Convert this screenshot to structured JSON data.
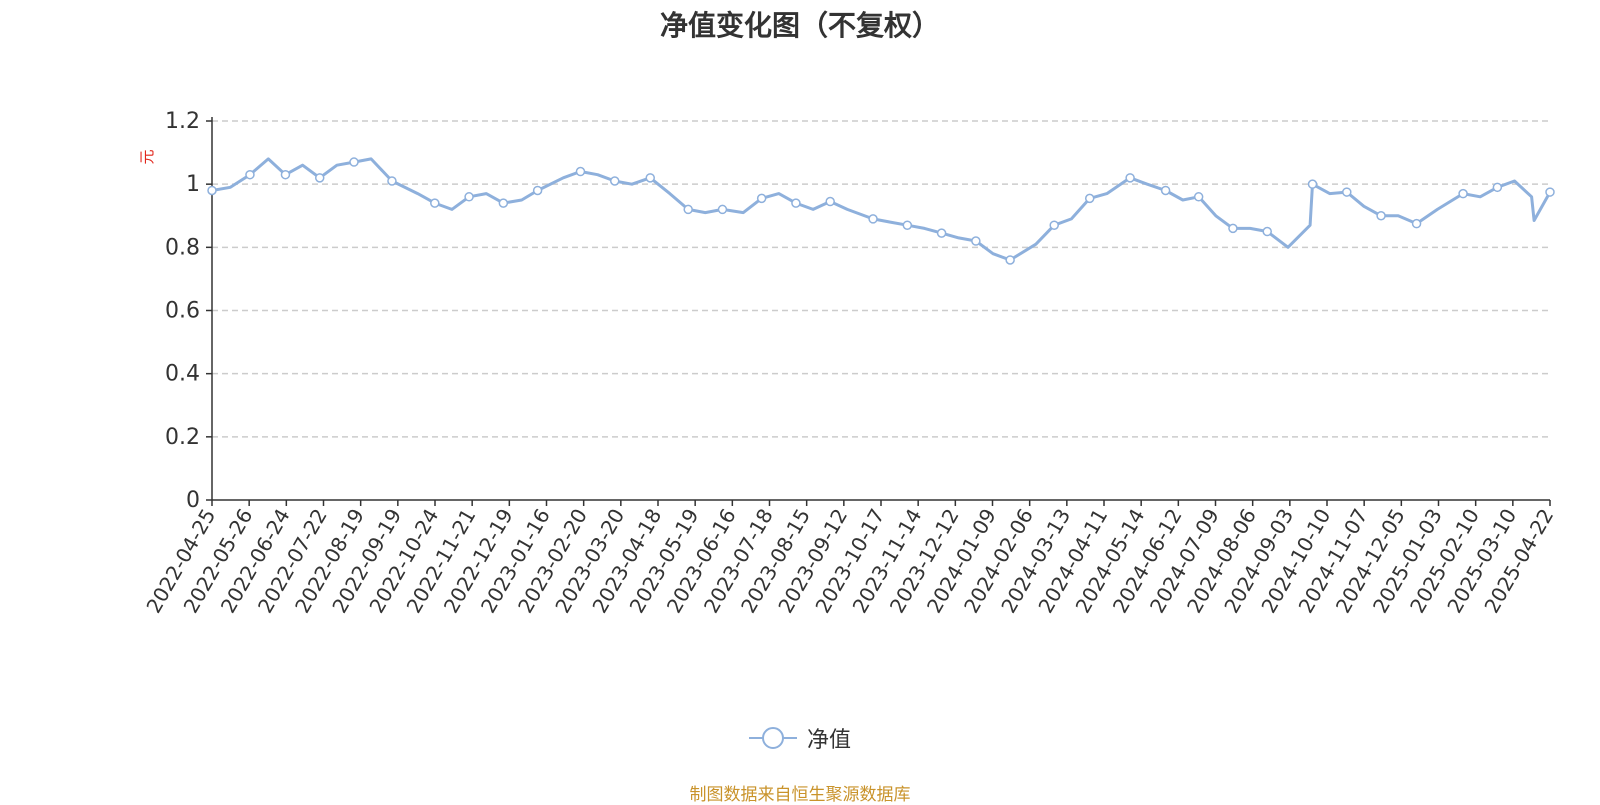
{
  "footer": "制图数据来自恒生聚源数据库",
  "chart_data": {
    "type": "line",
    "title": "净值变化图（不复权）",
    "ylabel": "元",
    "xlabel": "",
    "ylim": [
      0,
      1.2
    ],
    "yticks": [
      0,
      0.2,
      0.4,
      0.6,
      0.8,
      1,
      1.2
    ],
    "grid": true,
    "legend_position": "bottom",
    "color": "#8eb0dc",
    "x_tick_labels": [
      "2022-04-25",
      "2022-05-26",
      "2022-06-24",
      "2022-07-22",
      "2022-08-19",
      "2022-09-19",
      "2022-10-24",
      "2022-11-21",
      "2022-12-19",
      "2023-01-16",
      "2023-02-20",
      "2023-03-20",
      "2023-04-18",
      "2023-05-19",
      "2023-06-16",
      "2023-07-18",
      "2023-08-15",
      "2023-09-12",
      "2023-10-17",
      "2023-11-14",
      "2023-12-12",
      "2024-01-09",
      "2024-02-06",
      "2024-03-13",
      "2024-04-11",
      "2024-05-14",
      "2024-06-12",
      "2024-07-09",
      "2024-08-06",
      "2024-09-03",
      "2024-10-10",
      "2024-11-07",
      "2024-12-05",
      "2025-01-03",
      "2025-02-10",
      "2025-03-10",
      "2025-04-22"
    ],
    "series": [
      {
        "name": "净值",
        "x": [
          "2022-04-25",
          "2022-05-10",
          "2022-05-26",
          "2022-06-10",
          "2022-06-24",
          "2022-07-08",
          "2022-07-22",
          "2022-08-05",
          "2022-08-19",
          "2022-09-02",
          "2022-09-19",
          "2022-10-10",
          "2022-10-24",
          "2022-11-07",
          "2022-11-21",
          "2022-12-05",
          "2022-12-19",
          "2023-01-03",
          "2023-01-16",
          "2023-02-06",
          "2023-02-20",
          "2023-03-06",
          "2023-03-20",
          "2023-04-03",
          "2023-04-18",
          "2023-05-04",
          "2023-05-19",
          "2023-06-02",
          "2023-06-16",
          "2023-07-03",
          "2023-07-18",
          "2023-08-01",
          "2023-08-15",
          "2023-08-29",
          "2023-09-12",
          "2023-09-26",
          "2023-10-17",
          "2023-10-31",
          "2023-11-14",
          "2023-11-28",
          "2023-12-12",
          "2023-12-26",
          "2024-01-09",
          "2024-01-23",
          "2024-02-06",
          "2024-02-27",
          "2024-03-13",
          "2024-03-27",
          "2024-04-11",
          "2024-04-25",
          "2024-05-14",
          "2024-05-28",
          "2024-06-12",
          "2024-06-26",
          "2024-07-09",
          "2024-07-23",
          "2024-08-06",
          "2024-08-20",
          "2024-09-03",
          "2024-09-20",
          "2024-10-08",
          "2024-10-10",
          "2024-10-24",
          "2024-11-07",
          "2024-11-21",
          "2024-12-05",
          "2024-12-19",
          "2025-01-03",
          "2025-01-20",
          "2025-02-10",
          "2025-02-24",
          "2025-03-10",
          "2025-03-24",
          "2025-04-07",
          "2025-04-09",
          "2025-04-22"
        ],
        "values": [
          0.98,
          0.99,
          1.03,
          1.08,
          1.03,
          1.06,
          1.02,
          1.06,
          1.07,
          1.08,
          1.01,
          0.97,
          0.94,
          0.92,
          0.96,
          0.97,
          0.94,
          0.95,
          0.98,
          1.02,
          1.04,
          1.03,
          1.01,
          1.0,
          1.02,
          0.97,
          0.92,
          0.91,
          0.92,
          0.91,
          0.955,
          0.97,
          0.94,
          0.92,
          0.945,
          0.92,
          0.89,
          0.88,
          0.87,
          0.86,
          0.845,
          0.83,
          0.82,
          0.78,
          0.76,
          0.81,
          0.87,
          0.89,
          0.955,
          0.97,
          1.02,
          1.0,
          0.98,
          0.95,
          0.96,
          0.9,
          0.86,
          0.86,
          0.85,
          0.8,
          0.87,
          1.0,
          0.97,
          0.975,
          0.93,
          0.9,
          0.9,
          0.875,
          0.92,
          0.97,
          0.96,
          0.99,
          1.01,
          0.96,
          0.885,
          0.975
        ]
      }
    ]
  }
}
